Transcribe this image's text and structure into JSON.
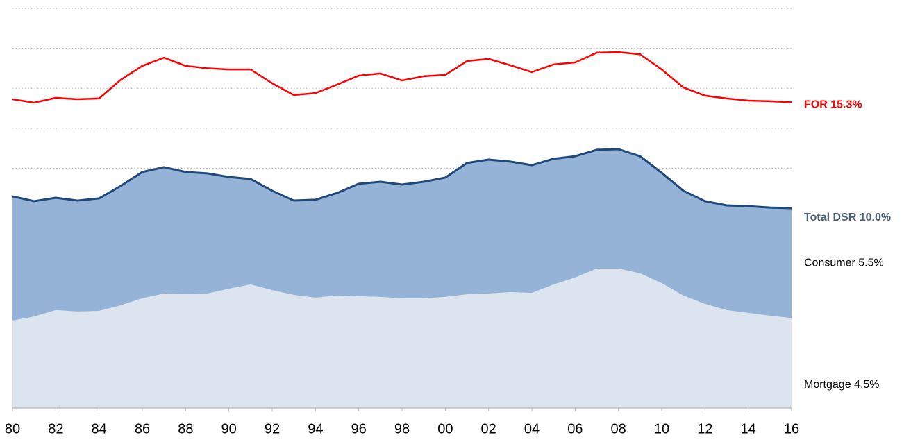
{
  "chart_data": {
    "type": "stacked_area_line",
    "x": [
      1980,
      1981,
      1982,
      1983,
      1984,
      1985,
      1986,
      1987,
      1988,
      1989,
      1990,
      1991,
      1992,
      1993,
      1994,
      1995,
      1996,
      1997,
      1998,
      1999,
      2000,
      2001,
      2002,
      2003,
      2004,
      2005,
      2006,
      2007,
      2008,
      2009,
      2010,
      2011,
      2012,
      2013,
      2014,
      2015,
      2016
    ],
    "series": [
      {
        "name": "Mortgage 4.5%",
        "kind": "area",
        "color": "#dce4f0",
        "values": [
          4.38,
          4.58,
          4.9,
          4.83,
          4.86,
          5.14,
          5.49,
          5.73,
          5.69,
          5.73,
          5.97,
          6.18,
          5.9,
          5.66,
          5.52,
          5.63,
          5.59,
          5.56,
          5.49,
          5.49,
          5.56,
          5.69,
          5.73,
          5.8,
          5.76,
          6.18,
          6.53,
          6.98,
          6.98,
          6.74,
          6.25,
          5.63,
          5.21,
          4.9,
          4.76,
          4.62,
          4.5
        ]
      },
      {
        "name": "Consumer 5.5%",
        "kind": "area",
        "color": "#95b3d7",
        "outline_color": "#1f497d",
        "values": [
          6.21,
          5.77,
          5.62,
          5.55,
          5.63,
          5.97,
          6.32,
          6.32,
          6.12,
          6.01,
          5.59,
          5.28,
          4.97,
          4.72,
          4.9,
          5.13,
          5.63,
          5.76,
          5.69,
          5.83,
          5.97,
          6.57,
          6.7,
          6.53,
          6.39,
          6.29,
          6.07,
          5.94,
          5.97,
          5.86,
          5.52,
          5.24,
          5.14,
          5.24,
          5.34,
          5.41,
          5.5
        ]
      },
      {
        "name": "FOR 15.3%",
        "kind": "line",
        "color": "#ff0000",
        "values": [
          15.45,
          15.28,
          15.52,
          15.45,
          15.49,
          16.42,
          17.12,
          17.53,
          17.12,
          17.0,
          16.94,
          16.94,
          16.25,
          15.66,
          15.76,
          16.18,
          16.63,
          16.74,
          16.39,
          16.6,
          16.67,
          17.36,
          17.47,
          17.15,
          16.81,
          17.19,
          17.29,
          17.78,
          17.81,
          17.7,
          16.94,
          16.04,
          15.63,
          15.49,
          15.38,
          15.35,
          15.3
        ]
      }
    ],
    "total_label": "Total DSR 10.0%",
    "xlim": [
      1980,
      2016
    ],
    "xticks": [
      {
        "value": 1980,
        "label": "80"
      },
      {
        "value": 1982,
        "label": "82"
      },
      {
        "value": 1984,
        "label": "84"
      },
      {
        "value": 1986,
        "label": "86"
      },
      {
        "value": 1988,
        "label": "88"
      },
      {
        "value": 1990,
        "label": "90"
      },
      {
        "value": 1992,
        "label": "92"
      },
      {
        "value": 1994,
        "label": "94"
      },
      {
        "value": 1996,
        "label": "96"
      },
      {
        "value": 1998,
        "label": "98"
      },
      {
        "value": 2000,
        "label": "00"
      },
      {
        "value": 2002,
        "label": "02"
      },
      {
        "value": 2004,
        "label": "04"
      },
      {
        "value": 2006,
        "label": "06"
      },
      {
        "value": 2008,
        "label": "08"
      },
      {
        "value": 2010,
        "label": "10"
      },
      {
        "value": 2012,
        "label": "12"
      },
      {
        "value": 2014,
        "label": "14"
      },
      {
        "value": 2016,
        "label": "16"
      }
    ],
    "ylim": [
      0,
      20
    ],
    "yticks": [
      12,
      14,
      16,
      18,
      20
    ],
    "grid": true
  }
}
